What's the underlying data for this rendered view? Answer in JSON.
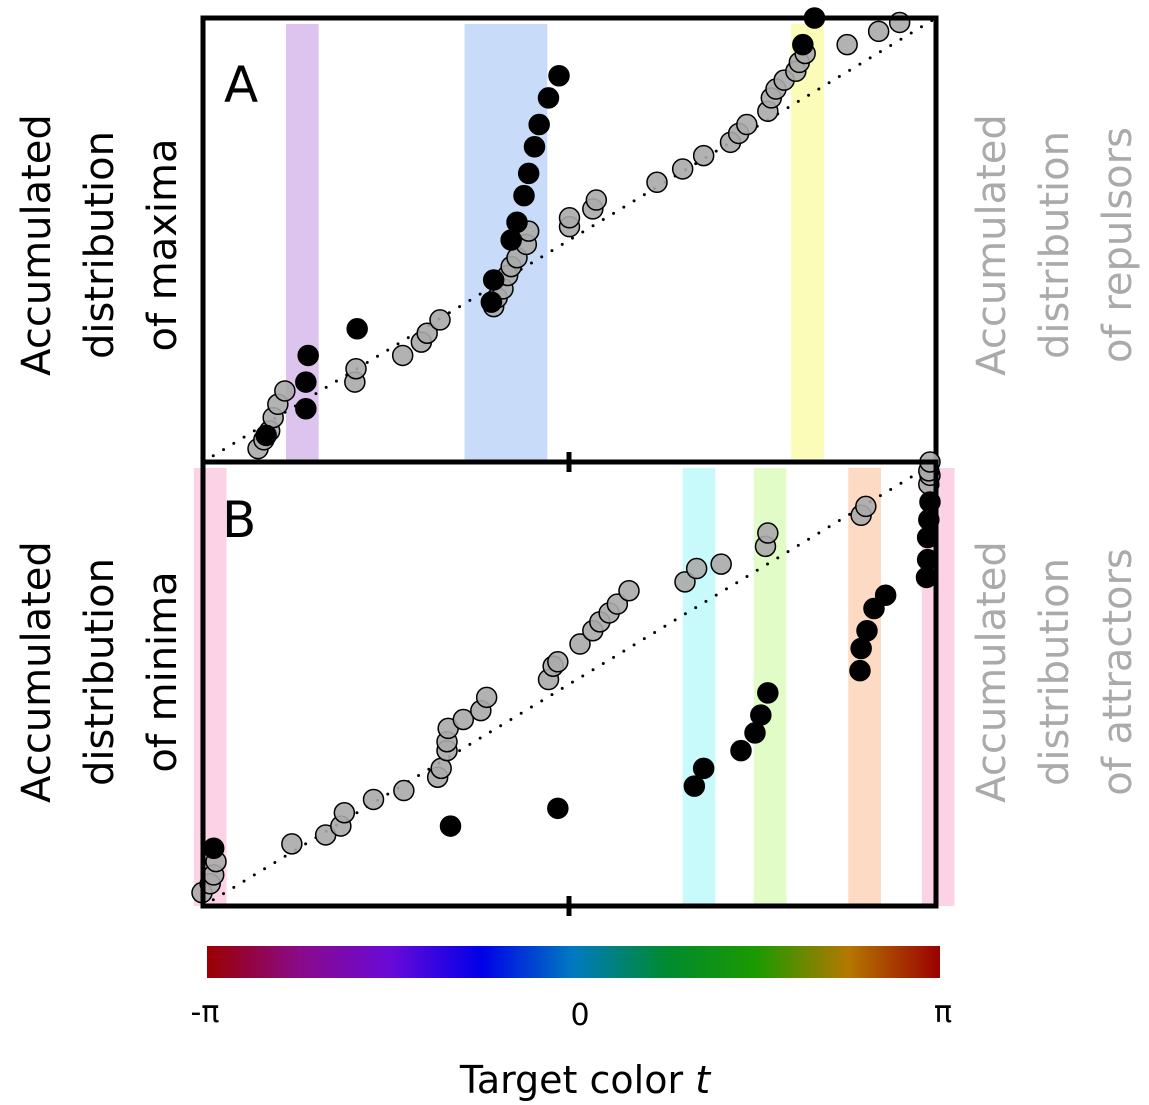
{
  "chart_data": [
    {
      "type": "scatter",
      "panel_label": "A",
      "left_ylabel": [
        "Accumulated",
        "distribution",
        "of maxima"
      ],
      "right_ylabel": [
        "Accumulated",
        "distribution",
        "of repulsors"
      ],
      "xlim": [
        -3.1416,
        3.1416
      ],
      "ylim": [
        0,
        1
      ],
      "bands": [
        {
          "x0": -2.43,
          "x1": -2.15,
          "color": "#dcc4ee"
        },
        {
          "x0": -0.9,
          "x1": -0.19,
          "color": "#c8dcfa"
        },
        {
          "x0": 1.9,
          "x1": 2.18,
          "color": "#fafcb8"
        }
      ],
      "series": [
        {
          "color": "#aaaaaa",
          "points": [
            [
              -2.67,
              0.03
            ],
            [
              -2.62,
              0.05
            ],
            [
              -2.57,
              0.07
            ],
            [
              -2.54,
              0.1
            ],
            [
              -2.5,
              0.13
            ],
            [
              -2.44,
              0.16
            ],
            [
              -1.84,
              0.18
            ],
            [
              -1.83,
              0.21
            ],
            [
              -1.43,
              0.24
            ],
            [
              -1.27,
              0.27
            ],
            [
              -1.22,
              0.29
            ],
            [
              -1.11,
              0.32
            ],
            [
              -0.65,
              0.35
            ],
            [
              -0.62,
              0.37
            ],
            [
              -0.57,
              0.39
            ],
            [
              -0.53,
              0.42
            ],
            [
              -0.5,
              0.44
            ],
            [
              -0.45,
              0.46
            ],
            [
              -0.37,
              0.49
            ],
            [
              -0.35,
              0.52
            ],
            [
              0.0,
              0.53
            ],
            [
              0.0,
              0.55
            ],
            [
              0.2,
              0.57
            ],
            [
              0.23,
              0.59
            ],
            [
              0.75,
              0.63
            ],
            [
              0.97,
              0.66
            ],
            [
              1.15,
              0.69
            ],
            [
              1.38,
              0.72
            ],
            [
              1.45,
              0.74
            ],
            [
              1.52,
              0.76
            ],
            [
              1.7,
              0.79
            ],
            [
              1.73,
              0.82
            ],
            [
              1.77,
              0.84
            ],
            [
              1.84,
              0.86
            ],
            [
              1.94,
              0.88
            ],
            [
              1.97,
              0.9
            ],
            [
              2.02,
              0.92
            ],
            [
              2.38,
              0.94
            ],
            [
              2.65,
              0.97
            ],
            [
              2.83,
              0.99
            ]
          ]
        },
        {
          "color": "#000000",
          "points": [
            [
              -2.6,
              0.06
            ],
            [
              -1.82,
              0.3
            ],
            [
              -2.26,
              0.12
            ],
            [
              -2.26,
              0.18
            ],
            [
              -2.24,
              0.24
            ],
            [
              -0.67,
              0.36
            ],
            [
              -0.65,
              0.41
            ],
            [
              -0.5,
              0.5
            ],
            [
              -0.45,
              0.54
            ],
            [
              -0.39,
              0.6
            ],
            [
              -0.35,
              0.65
            ],
            [
              -0.3,
              0.71
            ],
            [
              -0.26,
              0.76
            ],
            [
              -0.18,
              0.82
            ],
            [
              -0.09,
              0.87
            ],
            [
              2.0,
              0.94
            ],
            [
              2.1,
              1.0
            ]
          ]
        }
      ]
    },
    {
      "type": "scatter",
      "panel_label": "B",
      "left_ylabel": [
        "Accumulated",
        "distribution",
        "of minima"
      ],
      "right_ylabel": [
        "Accumulated",
        "distribution",
        "of attractors"
      ],
      "xlim": [
        -3.1416,
        3.1416
      ],
      "ylim": [
        0,
        1
      ],
      "bands": [
        {
          "x0": -3.22,
          "x1": -2.94,
          "color": "#fcd2e6"
        },
        {
          "x0": 0.97,
          "x1": 1.25,
          "color": "#c8fafc"
        },
        {
          "x0": 1.58,
          "x1": 1.86,
          "color": "#e2fcc8"
        },
        {
          "x0": 2.39,
          "x1": 2.67,
          "color": "#fcdac4"
        },
        {
          "x0": 3.02,
          "x1": 3.3,
          "color": "#fcd2e6"
        }
      ],
      "series": [
        {
          "color": "#aaaaaa",
          "points": [
            [
              -3.15,
              0.03
            ],
            [
              -3.08,
              0.05
            ],
            [
              -3.05,
              0.07
            ],
            [
              -3.03,
              0.1
            ],
            [
              -2.38,
              0.14
            ],
            [
              -2.09,
              0.16
            ],
            [
              -1.96,
              0.18
            ],
            [
              -1.93,
              0.21
            ],
            [
              -1.68,
              0.24
            ],
            [
              -1.42,
              0.26
            ],
            [
              -1.13,
              0.29
            ],
            [
              -1.1,
              0.31
            ],
            [
              -1.05,
              0.35
            ],
            [
              -1.05,
              0.37
            ],
            [
              -1.04,
              0.4
            ],
            [
              -0.91,
              0.42
            ],
            [
              -0.76,
              0.44
            ],
            [
              -0.71,
              0.47
            ],
            [
              -0.18,
              0.51
            ],
            [
              -0.14,
              0.54
            ],
            [
              -0.1,
              0.55
            ],
            [
              0.09,
              0.59
            ],
            [
              0.2,
              0.62
            ],
            [
              0.26,
              0.64
            ],
            [
              0.34,
              0.66
            ],
            [
              0.41,
              0.68
            ],
            [
              0.51,
              0.71
            ],
            [
              0.99,
              0.73
            ],
            [
              1.09,
              0.76
            ],
            [
              1.3,
              0.77
            ],
            [
              1.68,
              0.81
            ],
            [
              1.7,
              0.84
            ],
            [
              2.5,
              0.88
            ],
            [
              2.54,
              0.9
            ],
            [
              3.08,
              0.95
            ],
            [
              3.09,
              0.97
            ],
            [
              3.08,
              0.98
            ],
            [
              3.09,
              1.0
            ]
          ]
        },
        {
          "color": "#000000",
          "points": [
            [
              -3.05,
              0.13
            ],
            [
              -1.02,
              0.18
            ],
            [
              -0.1,
              0.22
            ],
            [
              1.07,
              0.27
            ],
            [
              1.15,
              0.31
            ],
            [
              1.47,
              0.35
            ],
            [
              1.59,
              0.39
            ],
            [
              1.64,
              0.43
            ],
            [
              1.7,
              0.48
            ],
            [
              2.49,
              0.53
            ],
            [
              2.5,
              0.58
            ],
            [
              2.55,
              0.62
            ],
            [
              2.61,
              0.67
            ],
            [
              2.71,
              0.7
            ],
            [
              3.06,
              0.74
            ],
            [
              3.07,
              0.78
            ],
            [
              3.07,
              0.83
            ],
            [
              3.08,
              0.87
            ],
            [
              3.09,
              0.91
            ]
          ]
        }
      ]
    }
  ],
  "colorbar": {
    "colors": [
      "#9b0000",
      "#8a0a88",
      "#6a0ad8",
      "#0000e8",
      "#007ac0",
      "#008a30",
      "#1c9a00",
      "#b47800",
      "#9b0000"
    ]
  },
  "axis": {
    "tick_labels": [
      "-π",
      "0",
      "π"
    ],
    "xlabel_main": "Target color ",
    "xlabel_var": "t"
  }
}
